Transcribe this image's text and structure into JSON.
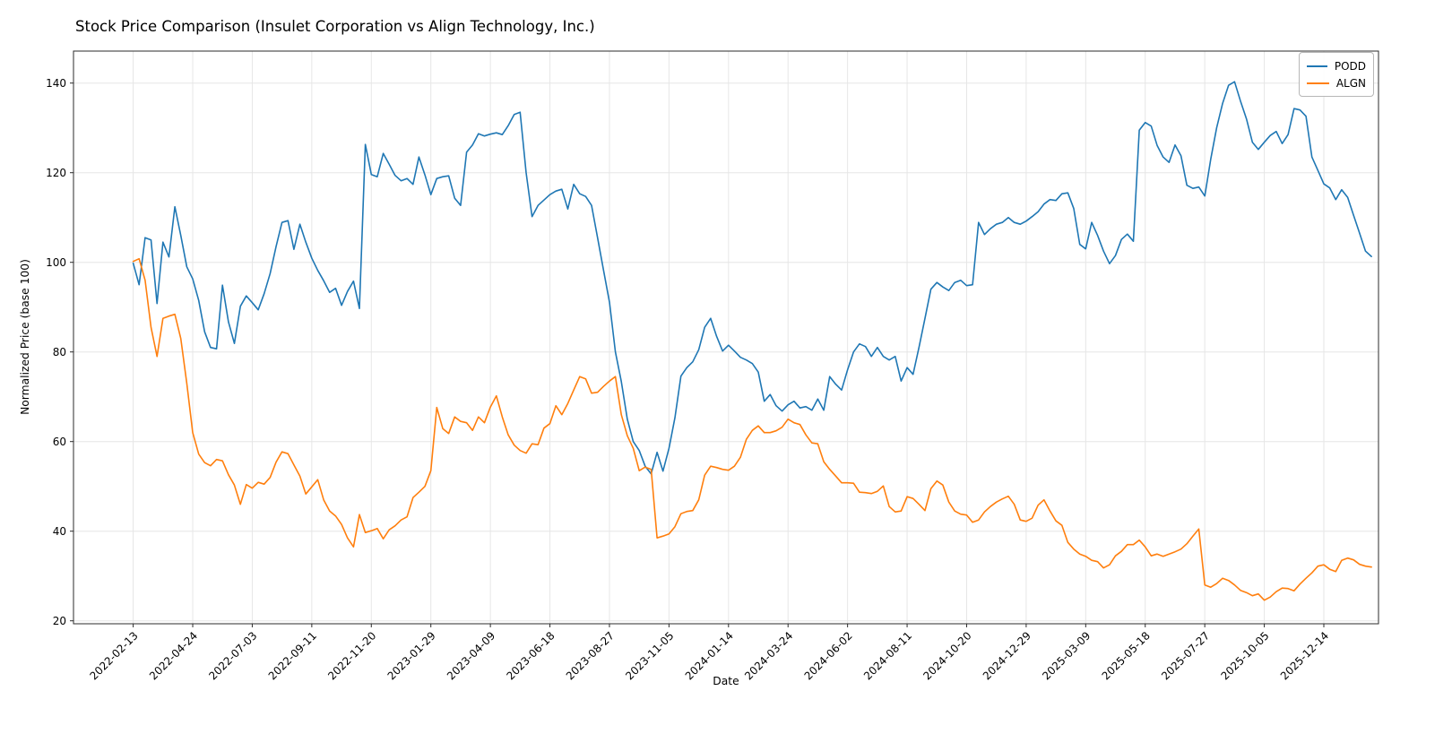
{
  "chart_data": {
    "type": "line",
    "title": "Stock Price Comparison (Insulet Corporation vs Align Technology, Inc.)",
    "xlabel": "Date",
    "ylabel": "Normalized Price (base 100)",
    "grid": true,
    "legend_position": "upper right",
    "x_start_date": "2022-02-13",
    "x_interval_days": 7,
    "x_tick_step_weeks": 10,
    "x_tick_labels": [
      "2022-02-13",
      "2022-04-24",
      "2022-07-03",
      "2022-09-11",
      "2022-11-20",
      "2023-01-29",
      "2023-04-09",
      "2023-06-18",
      "2023-08-27",
      "2023-11-05",
      "2024-01-14",
      "2024-03-24",
      "2024-06-02",
      "2024-08-11",
      "2024-10-20",
      "2024-12-29",
      "2025-03-09",
      "2025-05-18",
      "2025-07-27",
      "2025-10-05",
      "2025-12-14"
    ],
    "y_ticks": [
      20,
      40,
      60,
      80,
      100,
      120,
      140
    ],
    "ylim": [
      19.3,
      147.1
    ],
    "series": [
      {
        "name": "PODD",
        "color": "#1f77b4",
        "values": [
          99.8,
          95.0,
          105.5,
          105.0,
          90.8,
          104.5,
          101.2,
          112.4,
          106.0,
          99.0,
          96.3,
          91.5,
          84.5,
          81.0,
          80.7,
          94.9,
          86.7,
          81.9,
          90.2,
          92.5,
          91.0,
          89.4,
          93.0,
          97.5,
          103.5,
          108.9,
          109.3,
          102.9,
          108.5,
          104.5,
          100.9,
          98.2,
          95.9,
          93.3,
          94.2,
          90.4,
          93.5,
          95.8,
          89.7,
          126.3,
          119.6,
          119.1,
          124.3,
          121.9,
          119.4,
          118.2,
          118.7,
          117.4,
          123.5,
          119.5,
          115.1,
          118.7,
          119.1,
          119.3,
          114.3,
          112.7,
          124.6,
          126.2,
          128.7,
          128.2,
          128.6,
          128.9,
          128.5,
          130.5,
          133.0,
          133.5,
          120.0,
          110.2,
          112.7,
          113.9,
          115.1,
          115.9,
          116.3,
          111.9,
          117.4,
          115.3,
          114.7,
          112.7,
          105.5,
          98.3,
          91.1,
          80.0,
          73.4,
          65.0,
          60.0,
          58.0,
          54.5,
          52.8,
          57.6,
          53.4,
          58.5,
          65.3,
          74.6,
          76.5,
          77.8,
          80.5,
          85.5,
          87.5,
          83.5,
          80.2,
          81.5,
          80.2,
          78.8,
          78.2,
          77.4,
          75.5,
          69.0,
          70.5,
          68.0,
          66.8,
          68.2,
          69.0,
          67.5,
          67.8,
          67.0,
          69.5,
          67.0,
          74.5,
          72.8,
          71.5,
          76.0,
          80.0,
          81.8,
          81.2,
          79.0,
          81.0,
          79.0,
          78.2,
          79.0,
          73.5,
          76.5,
          75.0,
          81.0,
          87.5,
          94.0,
          95.5,
          94.5,
          93.7,
          95.5,
          96.0,
          94.8,
          95.0,
          108.9,
          106.2,
          107.5,
          108.5,
          108.9,
          110.0,
          108.9,
          108.5,
          109.2,
          110.2,
          111.3,
          113.0,
          114.0,
          113.8,
          115.3,
          115.5,
          112.0,
          104.0,
          103.0,
          108.9,
          106.0,
          102.5,
          99.7,
          101.5,
          105.1,
          106.3,
          104.7,
          129.5,
          131.2,
          130.4,
          126.1,
          123.5,
          122.3,
          126.2,
          123.8,
          117.2,
          116.5,
          116.8,
          114.8,
          123.0,
          130.0,
          135.5,
          139.5,
          140.3,
          136.0,
          132.0,
          126.8,
          125.2,
          126.8,
          128.3,
          129.2,
          126.5,
          128.5,
          134.3,
          134.0,
          132.6,
          123.5,
          120.5,
          117.5,
          116.6,
          114.0,
          116.2,
          114.5,
          110.5,
          106.5,
          102.5,
          101.3
        ]
      },
      {
        "name": "ALGN",
        "color": "#ff7f0e",
        "values": [
          100.2,
          100.8,
          96.0,
          85.5,
          79.0,
          87.5,
          88.0,
          88.4,
          83.0,
          73.0,
          62.0,
          57.2,
          55.3,
          54.6,
          56.0,
          55.7,
          52.6,
          50.3,
          46.0,
          50.4,
          49.6,
          50.9,
          50.5,
          52.0,
          55.4,
          57.7,
          57.3,
          54.8,
          52.3,
          48.3,
          49.9,
          51.5,
          47.0,
          44.5,
          43.4,
          41.5,
          38.5,
          36.5,
          43.7,
          39.7,
          40.1,
          40.6,
          38.3,
          40.3,
          41.2,
          42.5,
          43.2,
          47.5,
          48.7,
          50.0,
          53.5,
          67.6,
          62.9,
          61.8,
          65.5,
          64.5,
          64.2,
          62.5,
          65.5,
          64.2,
          67.7,
          70.2,
          65.5,
          61.5,
          59.2,
          58.0,
          57.4,
          59.5,
          59.3,
          63.0,
          64.0,
          68.0,
          66.0,
          68.5,
          71.5,
          74.5,
          74.0,
          70.8,
          71.0,
          72.3,
          73.5,
          74.5,
          66.0,
          61.3,
          58.5,
          53.5,
          54.3,
          53.8,
          38.5,
          38.9,
          39.4,
          41.0,
          43.9,
          44.4,
          44.6,
          47.0,
          52.5,
          54.5,
          54.2,
          53.8,
          53.6,
          54.5,
          56.5,
          60.5,
          62.5,
          63.5,
          62.0,
          62.0,
          62.4,
          63.2,
          65.0,
          64.2,
          63.8,
          61.5,
          59.7,
          59.5,
          55.5,
          53.8,
          52.3,
          50.8,
          50.8,
          50.7,
          48.7,
          48.6,
          48.4,
          48.9,
          50.1,
          45.5,
          44.3,
          44.5,
          47.7,
          47.3,
          46.0,
          44.6,
          49.5,
          51.2,
          50.3,
          46.5,
          44.5,
          43.8,
          43.6,
          42.0,
          42.5,
          44.3,
          45.5,
          46.5,
          47.2,
          47.8,
          46.0,
          42.5,
          42.2,
          42.9,
          45.8,
          47.0,
          44.5,
          42.3,
          41.3,
          37.5,
          36.0,
          34.9,
          34.4,
          33.5,
          33.2,
          31.8,
          32.5,
          34.5,
          35.5,
          37.0,
          37.0,
          38.0,
          36.5,
          34.5,
          34.9,
          34.4,
          34.9,
          35.4,
          36.0,
          37.2,
          38.9,
          40.5,
          28.0,
          27.5,
          28.3,
          29.5,
          29.0,
          28.0,
          26.8,
          26.3,
          25.6,
          26.0,
          24.6,
          25.3,
          26.5,
          27.3,
          27.2,
          26.7,
          28.2,
          29.5,
          30.7,
          32.2,
          32.5,
          31.5,
          31.0,
          33.5,
          34.0,
          33.6,
          32.6,
          32.2,
          32.0
        ]
      }
    ]
  }
}
